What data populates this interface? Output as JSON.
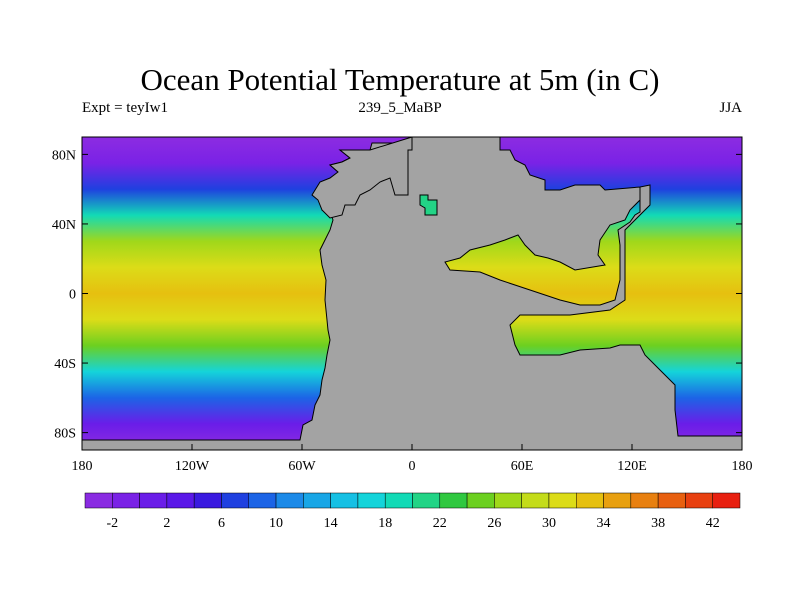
{
  "title": "Ocean Potential Temperature at 5m (in C)",
  "header": {
    "left": "Expt = teyIw1",
    "center": "239_5_MaBP",
    "right": "JJA"
  },
  "axes": {
    "x_ticks": [
      "180",
      "120W",
      "60W",
      "0",
      "60E",
      "120E",
      "180"
    ],
    "y_ticks": [
      "80N",
      "40N",
      "0",
      "40S",
      "80S"
    ]
  },
  "colorbar": {
    "labels": [
      "-2",
      "2",
      "6",
      "10",
      "14",
      "18",
      "22",
      "26",
      "30",
      "34",
      "38",
      "42"
    ],
    "colors": [
      "#8a2be2",
      "#7a22e6",
      "#6a1de8",
      "#5a18e8",
      "#3a1ae0",
      "#1f40e0",
      "#1c64e6",
      "#1c8ae8",
      "#18a6e6",
      "#16c0e4",
      "#14d4da",
      "#12dab6",
      "#22d486",
      "#30c840",
      "#6cd020",
      "#a0d81a",
      "#c4dc1a",
      "#dcdc18",
      "#e6c010",
      "#e8a010",
      "#e88010",
      "#e86010",
      "#e84010",
      "#e82010"
    ]
  },
  "land_color": "#a3a3a3",
  "chart_data": {
    "type": "heatmap",
    "title": "Ocean Potential Temperature at 5m (in C)",
    "variable": "Ocean Potential Temperature at 5m",
    "units": "C",
    "x_range": [
      -180,
      180
    ],
    "y_range": [
      -90,
      90
    ],
    "contour_levels": [
      -4,
      -2,
      0,
      2,
      4,
      6,
      8,
      10,
      12,
      14,
      16,
      18,
      20,
      22,
      24,
      26,
      28,
      30,
      32,
      34,
      36,
      38,
      40,
      42,
      44
    ],
    "zonal_mean_profile": [
      {
        "lat": 88,
        "temp": -3
      },
      {
        "lat": 75,
        "temp": -1
      },
      {
        "lat": 60,
        "temp": 6
      },
      {
        "lat": 45,
        "temp": 18
      },
      {
        "lat": 30,
        "temp": 27
      },
      {
        "lat": 15,
        "temp": 31
      },
      {
        "lat": 0,
        "temp": 33
      },
      {
        "lat": -15,
        "temp": 30
      },
      {
        "lat": -30,
        "temp": 24
      },
      {
        "lat": -45,
        "temp": 16
      },
      {
        "lat": -60,
        "temp": 8
      },
      {
        "lat": -75,
        "temp": 0
      },
      {
        "lat": -88,
        "temp": -3
      }
    ]
  }
}
